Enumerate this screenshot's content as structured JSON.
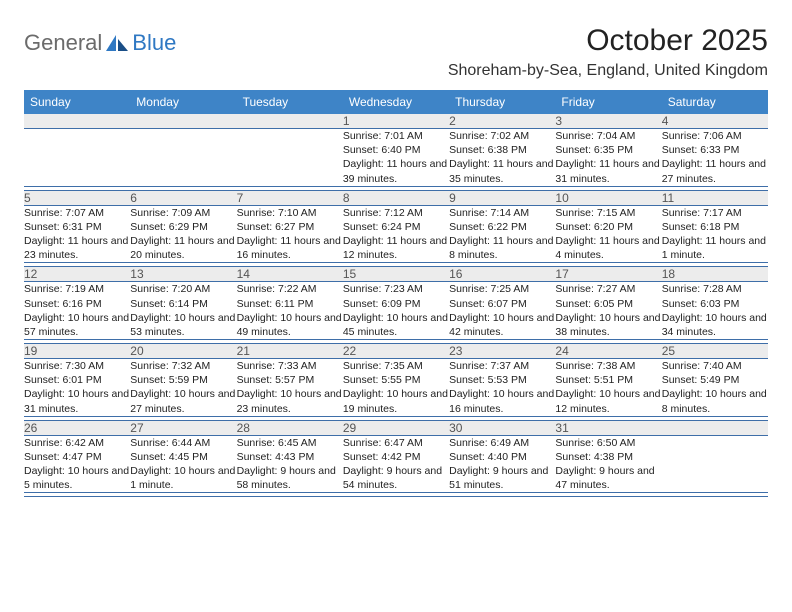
{
  "logo": {
    "general": "General",
    "blue": "Blue"
  },
  "title": "October 2025",
  "subtitle": "Shoreham-by-Sea, England, United Kingdom",
  "colors": {
    "header_bg": "#3e84c7",
    "header_fg": "#ffffff",
    "daynum_bg": "#ececec",
    "daynum_fg": "#555555",
    "rule": "#3e6ea8",
    "text": "#222222",
    "logo_gray": "#6b6b6b",
    "logo_blue": "#2f78c3"
  },
  "weekdays": [
    "Sunday",
    "Monday",
    "Tuesday",
    "Wednesday",
    "Thursday",
    "Friday",
    "Saturday"
  ],
  "weeks": [
    {
      "nums": [
        "",
        "",
        "",
        "1",
        "2",
        "3",
        "4"
      ],
      "cells": [
        null,
        null,
        null,
        {
          "sunrise": "7:01 AM",
          "sunset": "6:40 PM",
          "daylight": "11 hours and 39 minutes."
        },
        {
          "sunrise": "7:02 AM",
          "sunset": "6:38 PM",
          "daylight": "11 hours and 35 minutes."
        },
        {
          "sunrise": "7:04 AM",
          "sunset": "6:35 PM",
          "daylight": "11 hours and 31 minutes."
        },
        {
          "sunrise": "7:06 AM",
          "sunset": "6:33 PM",
          "daylight": "11 hours and 27 minutes."
        }
      ]
    },
    {
      "nums": [
        "5",
        "6",
        "7",
        "8",
        "9",
        "10",
        "11"
      ],
      "cells": [
        {
          "sunrise": "7:07 AM",
          "sunset": "6:31 PM",
          "daylight": "11 hours and 23 minutes."
        },
        {
          "sunrise": "7:09 AM",
          "sunset": "6:29 PM",
          "daylight": "11 hours and 20 minutes."
        },
        {
          "sunrise": "7:10 AM",
          "sunset": "6:27 PM",
          "daylight": "11 hours and 16 minutes."
        },
        {
          "sunrise": "7:12 AM",
          "sunset": "6:24 PM",
          "daylight": "11 hours and 12 minutes."
        },
        {
          "sunrise": "7:14 AM",
          "sunset": "6:22 PM",
          "daylight": "11 hours and 8 minutes."
        },
        {
          "sunrise": "7:15 AM",
          "sunset": "6:20 PM",
          "daylight": "11 hours and 4 minutes."
        },
        {
          "sunrise": "7:17 AM",
          "sunset": "6:18 PM",
          "daylight": "11 hours and 1 minute."
        }
      ]
    },
    {
      "nums": [
        "12",
        "13",
        "14",
        "15",
        "16",
        "17",
        "18"
      ],
      "cells": [
        {
          "sunrise": "7:19 AM",
          "sunset": "6:16 PM",
          "daylight": "10 hours and 57 minutes."
        },
        {
          "sunrise": "7:20 AM",
          "sunset": "6:14 PM",
          "daylight": "10 hours and 53 minutes."
        },
        {
          "sunrise": "7:22 AM",
          "sunset": "6:11 PM",
          "daylight": "10 hours and 49 minutes."
        },
        {
          "sunrise": "7:23 AM",
          "sunset": "6:09 PM",
          "daylight": "10 hours and 45 minutes."
        },
        {
          "sunrise": "7:25 AM",
          "sunset": "6:07 PM",
          "daylight": "10 hours and 42 minutes."
        },
        {
          "sunrise": "7:27 AM",
          "sunset": "6:05 PM",
          "daylight": "10 hours and 38 minutes."
        },
        {
          "sunrise": "7:28 AM",
          "sunset": "6:03 PM",
          "daylight": "10 hours and 34 minutes."
        }
      ]
    },
    {
      "nums": [
        "19",
        "20",
        "21",
        "22",
        "23",
        "24",
        "25"
      ],
      "cells": [
        {
          "sunrise": "7:30 AM",
          "sunset": "6:01 PM",
          "daylight": "10 hours and 31 minutes."
        },
        {
          "sunrise": "7:32 AM",
          "sunset": "5:59 PM",
          "daylight": "10 hours and 27 minutes."
        },
        {
          "sunrise": "7:33 AM",
          "sunset": "5:57 PM",
          "daylight": "10 hours and 23 minutes."
        },
        {
          "sunrise": "7:35 AM",
          "sunset": "5:55 PM",
          "daylight": "10 hours and 19 minutes."
        },
        {
          "sunrise": "7:37 AM",
          "sunset": "5:53 PM",
          "daylight": "10 hours and 16 minutes."
        },
        {
          "sunrise": "7:38 AM",
          "sunset": "5:51 PM",
          "daylight": "10 hours and 12 minutes."
        },
        {
          "sunrise": "7:40 AM",
          "sunset": "5:49 PM",
          "daylight": "10 hours and 8 minutes."
        }
      ]
    },
    {
      "nums": [
        "26",
        "27",
        "28",
        "29",
        "30",
        "31",
        ""
      ],
      "cells": [
        {
          "sunrise": "6:42 AM",
          "sunset": "4:47 PM",
          "daylight": "10 hours and 5 minutes."
        },
        {
          "sunrise": "6:44 AM",
          "sunset": "4:45 PM",
          "daylight": "10 hours and 1 minute."
        },
        {
          "sunrise": "6:45 AM",
          "sunset": "4:43 PM",
          "daylight": "9 hours and 58 minutes."
        },
        {
          "sunrise": "6:47 AM",
          "sunset": "4:42 PM",
          "daylight": "9 hours and 54 minutes."
        },
        {
          "sunrise": "6:49 AM",
          "sunset": "4:40 PM",
          "daylight": "9 hours and 51 minutes."
        },
        {
          "sunrise": "6:50 AM",
          "sunset": "4:38 PM",
          "daylight": "9 hours and 47 minutes."
        },
        null
      ]
    }
  ],
  "labels": {
    "sunrise": "Sunrise:",
    "sunset": "Sunset:",
    "daylight": "Daylight:"
  }
}
